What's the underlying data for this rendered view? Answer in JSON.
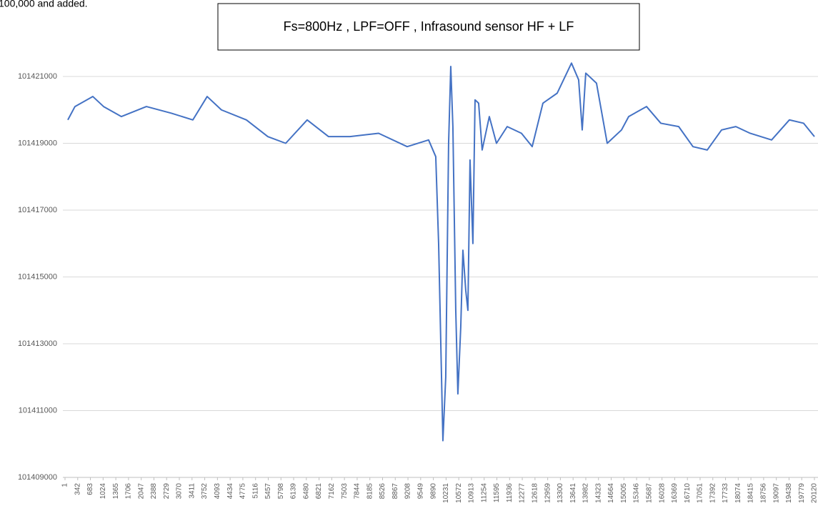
{
  "chart_data": {
    "type": "line",
    "title": "Fs=800Hz , LPF=OFF , Infrasound sensor HF + LF",
    "note": "100,000 and added.",
    "x": [
      77,
      268,
      748,
      1036,
      1515,
      2186,
      2858,
      3433,
      3817,
      4200,
      4871,
      5447,
      5926,
      6502,
      7077,
      7652,
      8420,
      9187,
      9762,
      9954,
      10031,
      10146,
      10222,
      10299,
      10357,
      10414,
      10491,
      10548,
      10625,
      10683,
      10759,
      10817,
      10874,
      10951,
      11009,
      11105,
      11200,
      11392,
      11584,
      11872,
      12255,
      12543,
      12831,
      13214,
      13598,
      13790,
      13886,
      13981,
      14269,
      14557,
      14941,
      15133,
      15612,
      15996,
      16476,
      16859,
      17243,
      17627,
      18010,
      18394,
      18970,
      19447,
      19830,
      20120
    ],
    "series": [
      {
        "color": "#4472c4",
        "values": [
          101419700,
          101420100,
          101420400,
          101420100,
          101419800,
          101420100,
          101419900,
          101419700,
          101420400,
          101420000,
          101419700,
          101419200,
          101419000,
          101419700,
          101419200,
          101419200,
          101419300,
          101418900,
          101419100,
          101418600,
          101416000,
          101410100,
          101412000,
          101419000,
          101421300,
          101419500,
          101414000,
          101411500,
          101413500,
          101415800,
          101414600,
          101414000,
          101418500,
          101416000,
          101420300,
          101420200,
          101418800,
          101419800,
          101419000,
          101419500,
          101419300,
          101418900,
          101420200,
          101420500,
          101421400,
          101420900,
          101419400,
          101421100,
          101420800,
          101419000,
          101419400,
          101419800,
          101420100,
          101419600,
          101419500,
          101418900,
          101418800,
          101419400,
          101419500,
          101419300,
          101419100,
          101419700,
          101419600,
          101419200
        ]
      }
    ],
    "xlim": [
      1,
      20120
    ],
    "xticks": [
      1,
      342,
      683,
      1024,
      1365,
      1706,
      2047,
      2388,
      2729,
      3070,
      3411,
      3752,
      4093,
      4434,
      4775,
      5116,
      5457,
      5798,
      6139,
      6480,
      6821,
      7162,
      7503,
      7844,
      8185,
      8526,
      8867,
      9208,
      9549,
      9890,
      10231,
      10572,
      10913,
      11254,
      11595,
      11936,
      12277,
      12618,
      12959,
      13300,
      13641,
      13982,
      14323,
      14664,
      15005,
      15346,
      15687,
      16028,
      16369,
      16710,
      17051,
      17392,
      17733,
      18074,
      18415,
      18756,
      19097,
      19438,
      19779,
      20120
    ],
    "ylim": [
      101409000,
      101421000
    ],
    "yticks": [
      101409000,
      101411000,
      101413000,
      101415000,
      101417000,
      101419000,
      101421000
    ],
    "grid": true
  }
}
